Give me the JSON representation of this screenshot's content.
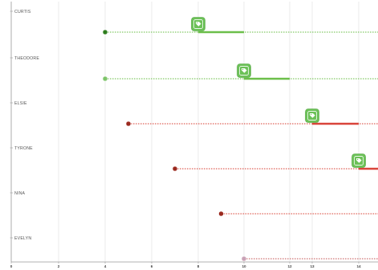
{
  "chart_data": {
    "type": "timeline",
    "title": "",
    "xlabel": "",
    "ylabel": "",
    "x_ticks": [
      "0",
      "2",
      "4",
      "6",
      "8",
      "10",
      "12",
      "13",
      "14"
    ],
    "grid": "vertical",
    "rows": [
      {
        "label": "CURTIS",
        "status": "green",
        "start": 4,
        "icon_at": 8,
        "bar_start": 8,
        "bar_end": 10
      },
      {
        "label": "THEODORE",
        "status": "green",
        "start": 4,
        "icon_at": 10,
        "bar_start": 10,
        "bar_end": 12
      },
      {
        "label": "ELSIE",
        "status": "red",
        "start": 5,
        "icon_at": 13,
        "bar_start": 13,
        "bar_end": 14
      },
      {
        "label": "TYRONE",
        "status": "red",
        "start": 7,
        "icon_at": 14,
        "bar_start": 14,
        "bar_end": 14.5
      },
      {
        "label": "NINA",
        "status": "red",
        "start": 9,
        "icon_at": null,
        "bar_start": null,
        "bar_end": null
      },
      {
        "label": "EVELYN",
        "status": "pink",
        "start": 10,
        "icon_at": null,
        "bar_start": null,
        "bar_end": null
      }
    ]
  },
  "colors": {
    "green_dot": "#2e7d1e",
    "green_line": "#6cbf4a",
    "green_light_dot": "#7ec46a",
    "red_dot": "#9b2a1f",
    "red_line": "#d9443a",
    "pink_dot": "#c9a2b6",
    "pink_line": "#c65a5a",
    "icon_bg": "#6cc158",
    "grid": "#e6e6e6",
    "axis": "#9a9a9a"
  },
  "icon": "tag-icon"
}
